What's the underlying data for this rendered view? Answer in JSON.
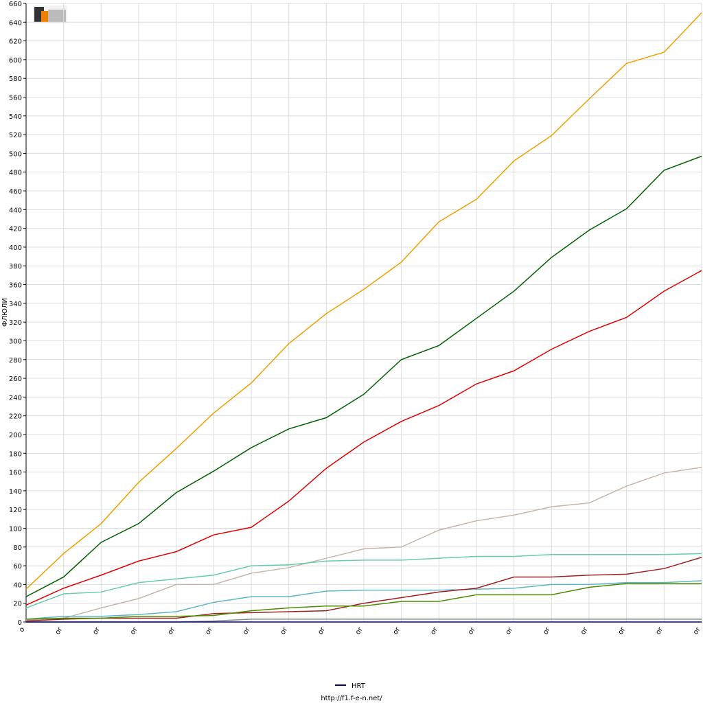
{
  "chart_data": {
    "type": "line",
    "y_label": "ФЛЮЛИ",
    "footer": "http://f1.f-e-n.net/",
    "categories": [
      "o",
      "or",
      "or",
      "or",
      "or",
      "or",
      "or",
      "or",
      "or",
      "or",
      "or",
      "or",
      "or",
      "or",
      "or",
      "or",
      "or",
      "or",
      "or"
    ],
    "ylim": [
      0,
      660
    ],
    "yticks": [
      0,
      20,
      40,
      60,
      80,
      100,
      120,
      140,
      160,
      180,
      200,
      220,
      240,
      260,
      280,
      300,
      320,
      340,
      360,
      380,
      400,
      420,
      440,
      460,
      480,
      500,
      520,
      540,
      560,
      580,
      600,
      620,
      640,
      660
    ],
    "grid": true,
    "series": [
      {
        "color": "#f0a000",
        "values": [
          35,
          73,
          105,
          149,
          185,
          223,
          255,
          297,
          329,
          355,
          384,
          427,
          451,
          492,
          519,
          558,
          596,
          608,
          650
        ]
      },
      {
        "color": "#006000",
        "values": [
          27,
          48,
          85,
          105,
          138,
          161,
          186,
          206,
          218,
          243,
          280,
          295,
          324,
          353,
          389,
          418,
          441,
          482,
          497
        ]
      },
      {
        "color": "#e00000",
        "values": [
          18,
          36,
          50,
          65,
          75,
          93,
          101,
          129,
          164,
          192,
          214,
          231,
          254,
          268,
          291,
          310,
          325,
          353,
          375
        ]
      },
      {
        "color": "#c8b4a8",
        "values": [
          2,
          4,
          15,
          25,
          40,
          40,
          52,
          58,
          68,
          78,
          80,
          98,
          108,
          114,
          123,
          127,
          145,
          159,
          165
        ]
      },
      {
        "color": "#66ccaa",
        "values": [
          15,
          30,
          32,
          42,
          46,
          50,
          60,
          61,
          65,
          66,
          66,
          68,
          70,
          70,
          72,
          72,
          72,
          72,
          73
        ]
      },
      {
        "color": "#5fb4c8",
        "values": [
          3,
          6,
          6,
          8,
          11,
          21,
          27,
          27,
          33,
          34,
          34,
          34,
          35,
          36,
          40,
          40,
          42,
          42,
          44
        ]
      },
      {
        "color": "#a02020",
        "values": [
          1,
          3,
          4,
          4,
          4,
          9,
          10,
          11,
          12,
          20,
          26,
          32,
          36,
          48,
          48,
          50,
          51,
          57,
          69
        ]
      },
      {
        "color": "#4c8c00",
        "values": [
          3,
          4,
          4,
          6,
          6,
          7,
          12,
          15,
          17,
          17,
          22,
          22,
          29,
          29,
          29,
          37,
          41,
          41,
          41
        ]
      },
      {
        "color": "#888888",
        "values": [
          0,
          0,
          0,
          0,
          0,
          1,
          3,
          3,
          3,
          3,
          3,
          3,
          3,
          3,
          3,
          3,
          3,
          3,
          3
        ]
      },
      {
        "name": "HRT",
        "color": "#000080",
        "values": [
          0,
          0,
          0,
          0,
          0,
          0,
          0,
          0,
          0,
          0,
          0,
          0,
          0,
          0,
          0,
          0,
          0,
          0,
          0
        ]
      }
    ]
  }
}
